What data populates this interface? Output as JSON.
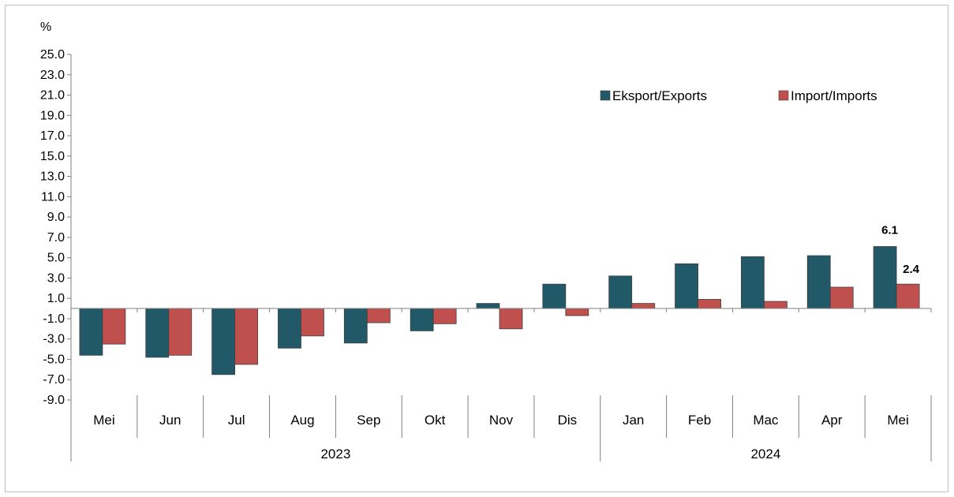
{
  "chart_data": {
    "type": "bar",
    "ylabel": "%",
    "ylim": [
      -9.0,
      25.0
    ],
    "yticks": [
      "25.0",
      "23.0",
      "21.0",
      "19.0",
      "17.0",
      "15.0",
      "13.0",
      "11.0",
      "9.0",
      "7.0",
      "5.0",
      "3.0",
      "1.0",
      "-1.0",
      "-3.0",
      "-5.0",
      "-7.0",
      "-9.0"
    ],
    "categories": [
      "Mei",
      "Jun",
      "Jul",
      "Aug",
      "Sep",
      "Okt",
      "Nov",
      "Dis",
      "Jan",
      "Feb",
      "Mac",
      "Apr",
      "Mei"
    ],
    "groups": [
      {
        "label": "2023",
        "count": 8
      },
      {
        "label": "2024",
        "count": 5
      }
    ],
    "series": [
      {
        "name": "Eksport/Exports",
        "color": "#215968",
        "values": [
          -4.6,
          -4.8,
          -6.5,
          -3.9,
          -3.4,
          -2.2,
          0.5,
          2.4,
          3.2,
          4.4,
          5.1,
          5.2,
          6.1
        ]
      },
      {
        "name": "Import/Imports",
        "color": "#c0504d",
        "values": [
          -3.5,
          -4.6,
          -5.5,
          -2.7,
          -1.4,
          -1.5,
          -2.0,
          -0.7,
          0.5,
          0.9,
          0.7,
          2.1,
          2.4
        ]
      }
    ],
    "data_labels": [
      {
        "series": 0,
        "index": 12,
        "text": "6.1"
      },
      {
        "series": 1,
        "index": 12,
        "text": "2.4"
      }
    ],
    "legend": "top-right",
    "grid": false
  }
}
